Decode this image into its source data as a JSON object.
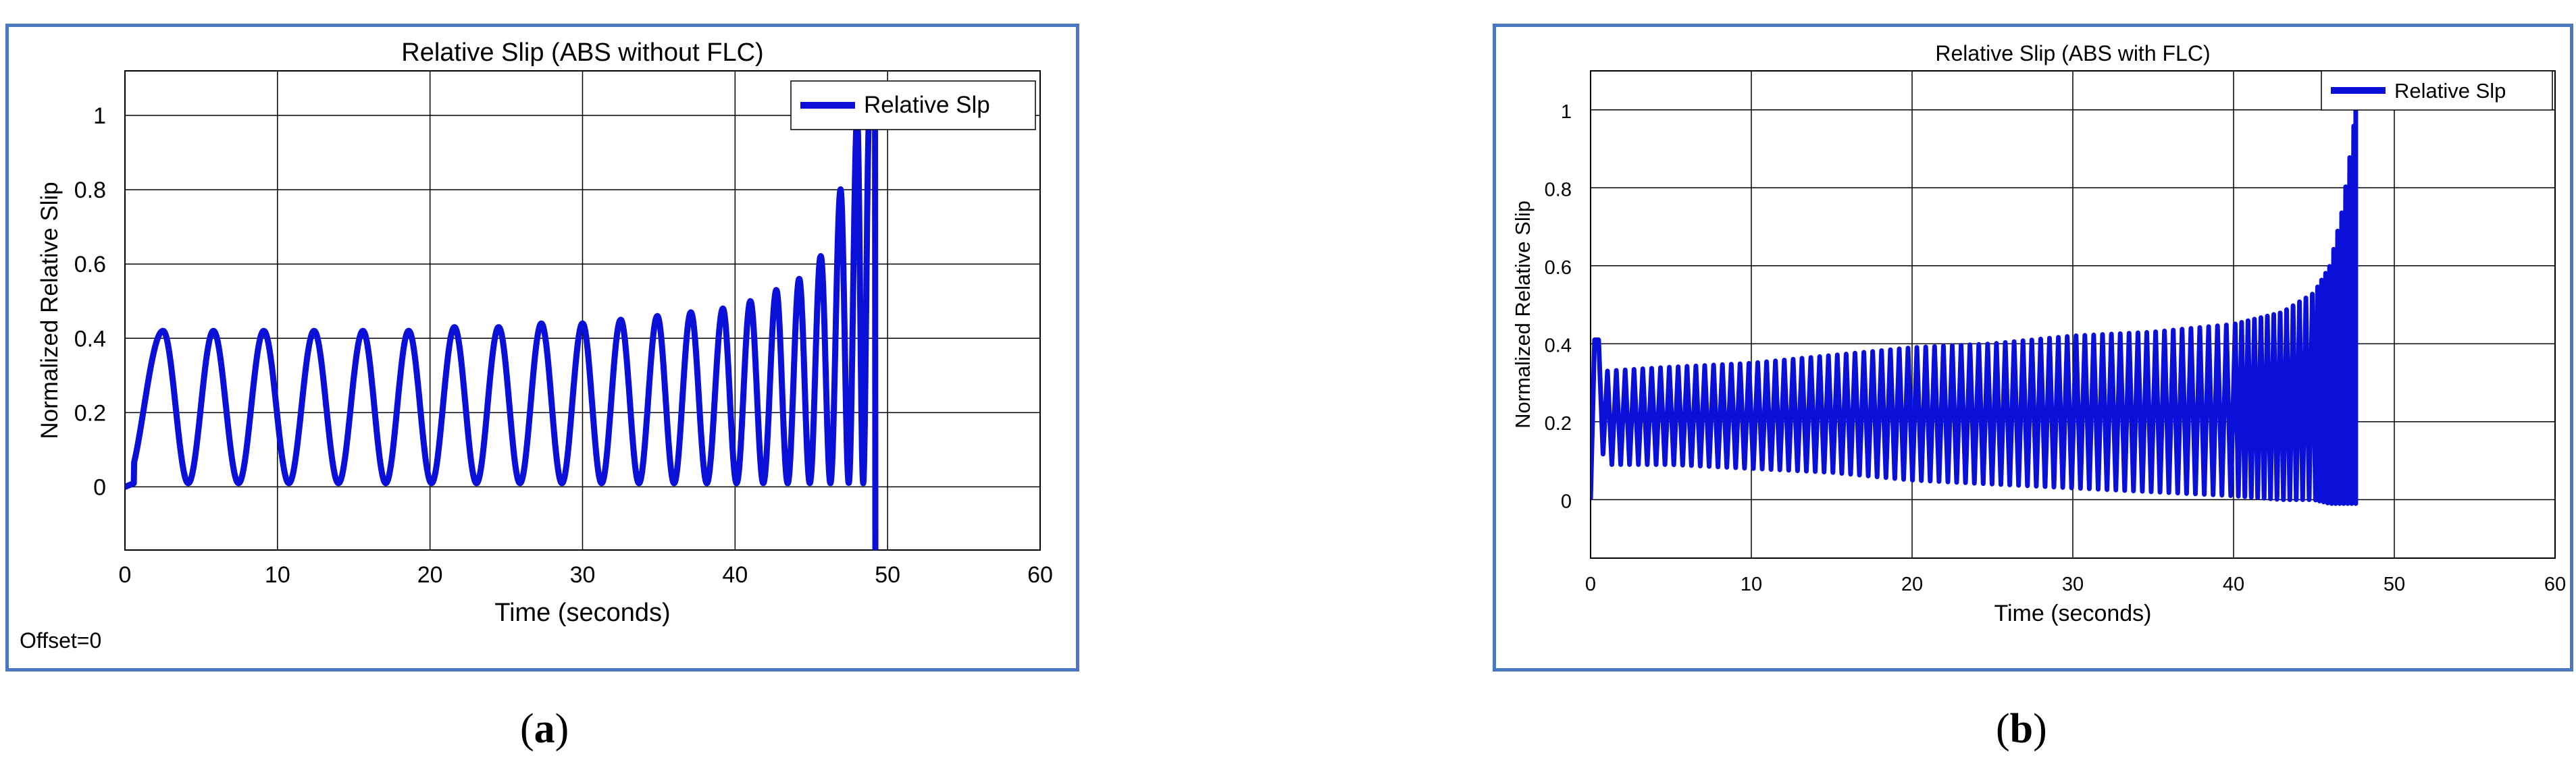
{
  "chart_data": [
    {
      "type": "line",
      "panel": "a",
      "title": "Relative Slip (ABS without FLC)",
      "xlabel": "Time (seconds)",
      "ylabel": "Normalized Relative Slip",
      "xlim": [
        0,
        60
      ],
      "ylim": [
        -0.17,
        1.12
      ],
      "xticks": [
        0,
        10,
        20,
        30,
        40,
        50,
        60
      ],
      "yticks": [
        0,
        0.2,
        0.4,
        0.6,
        0.8,
        1
      ],
      "ytick_labels": [
        "0",
        "0.2",
        "0.4",
        "0.6",
        "0.8",
        "1"
      ],
      "grid": true,
      "legend": {
        "entries": [
          "Relative Slp"
        ],
        "placement": "top-right"
      },
      "annotation": "Offset=0",
      "series": [
        {
          "name": "Relative Slp",
          "color": "#0a10d8",
          "description_values": {
            "oscillation_peaks_t": [
              2.5,
              5.8,
              9.1,
              12.4,
              15.6,
              18.6,
              21.6,
              24.5,
              27.3,
              30.0,
              32.5,
              34.9,
              37.1,
              39.2,
              41.0,
              42.7,
              44.2,
              45.6,
              46.9,
              48.0,
              48.8
            ],
            "oscillation_peaks_y": [
              0.42,
              0.42,
              0.42,
              0.42,
              0.42,
              0.42,
              0.43,
              0.43,
              0.44,
              0.44,
              0.45,
              0.46,
              0.47,
              0.48,
              0.5,
              0.53,
              0.56,
              0.62,
              0.8,
              1.0,
              1.0
            ],
            "trough_y": 0.01,
            "end_time": 49.2
          }
        }
      ]
    },
    {
      "type": "line",
      "panel": "b",
      "title": "Relative Slip (ABS with FLC)",
      "xlabel": "Time (seconds)",
      "ylabel": "Normalized Relative Slip",
      "xlim": [
        0,
        60
      ],
      "ylim": [
        -0.15,
        1.1
      ],
      "xticks": [
        0,
        10,
        20,
        30,
        40,
        50,
        60
      ],
      "yticks": [
        0,
        0.2,
        0.4,
        0.6,
        0.8,
        1
      ],
      "ytick_labels": [
        "0",
        "0.2",
        "0.4",
        "0.6",
        "0.8",
        "1"
      ],
      "grid": true,
      "legend": {
        "entries": [
          "Relative Slp"
        ],
        "placement": "top-right"
      },
      "series": [
        {
          "name": "Relative Slp",
          "color": "#0a10d8",
          "envelope": {
            "t": [
              0.5,
              1,
              5,
              10,
              15,
              20,
              25,
              30,
              35,
              40,
              43,
              45,
              46,
              46.8,
              47.3,
              47.6
            ],
            "upper": [
              0.41,
              0.33,
              0.34,
              0.35,
              0.37,
              0.39,
              0.4,
              0.42,
              0.43,
              0.45,
              0.48,
              0.53,
              0.6,
              0.75,
              0.9,
              1.0
            ],
            "lower": [
              0.15,
              0.09,
              0.09,
              0.08,
              0.07,
              0.05,
              0.04,
              0.03,
              0.02,
              0.01,
              0.0,
              0.0,
              -0.01,
              -0.01,
              -0.01,
              -0.01
            ]
          }
        }
      ]
    }
  ],
  "captions": {
    "a": "a",
    "b": "b"
  }
}
